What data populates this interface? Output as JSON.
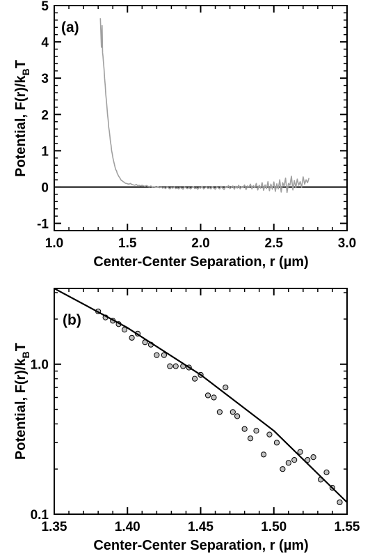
{
  "chart_data": [
    {
      "id": "a",
      "type": "line",
      "panel_label": "(a)",
      "xlabel": "Center-Center Separation, r (µm)",
      "ylabel": "Potential, F(r)/k",
      "ylabel_sub": "B",
      "ylabel_tail": "T",
      "xlim": [
        1.0,
        3.0
      ],
      "ylim": [
        -1.2,
        5.0
      ],
      "xticks": [
        1.0,
        1.5,
        2.0,
        2.5,
        3.0
      ],
      "xtick_labels": [
        "1.0",
        "1.5",
        "2.0",
        "2.5",
        "3.0"
      ],
      "yticks": [
        -1,
        0,
        1,
        2,
        3,
        4,
        5
      ],
      "ytick_labels": [
        "-1",
        "0",
        "1",
        "2",
        "3",
        "4",
        "5"
      ],
      "reference_line_y": 0,
      "series": [
        {
          "color": "#a0a0a0",
          "x": [
            1.315,
            1.322,
            1.327,
            1.33,
            1.333,
            1.336,
            1.34,
            1.344,
            1.348,
            1.352,
            1.356,
            1.36,
            1.364,
            1.368,
            1.372,
            1.376,
            1.38,
            1.384,
            1.388,
            1.392,
            1.396,
            1.4,
            1.405,
            1.41,
            1.415,
            1.42,
            1.425,
            1.43,
            1.435,
            1.44,
            1.445,
            1.45,
            1.455,
            1.46,
            1.465,
            1.47,
            1.475,
            1.48,
            1.485,
            1.49,
            1.495,
            1.5,
            1.51,
            1.52,
            1.53,
            1.54,
            1.55,
            1.56,
            1.57,
            1.58,
            1.59,
            1.6,
            1.61,
            1.62,
            1.63,
            1.64,
            1.65,
            1.66,
            1.67,
            1.68,
            1.69,
            1.7,
            1.71,
            1.72,
            1.73,
            1.74,
            1.75,
            1.76,
            1.77,
            1.78,
            1.79,
            1.8,
            1.81,
            1.82,
            1.83,
            1.84,
            1.85,
            1.86,
            1.87,
            1.88,
            1.89,
            1.9,
            1.91,
            1.92,
            1.93,
            1.94,
            1.95,
            1.96,
            1.97,
            1.98,
            1.99,
            2.0,
            2.01,
            2.02,
            2.03,
            2.04,
            2.05,
            2.06,
            2.07,
            2.08,
            2.09,
            2.1,
            2.11,
            2.12,
            2.13,
            2.14,
            2.15,
            2.16,
            2.17,
            2.18,
            2.19,
            2.2,
            2.21,
            2.22,
            2.23,
            2.24,
            2.25,
            2.26,
            2.27,
            2.28,
            2.29,
            2.3,
            2.31,
            2.32,
            2.33,
            2.34,
            2.35,
            2.36,
            2.37,
            2.38,
            2.39,
            2.4,
            2.41,
            2.42,
            2.43,
            2.44,
            2.45,
            2.46,
            2.47,
            2.48,
            2.49,
            2.5,
            2.51,
            2.52,
            2.53,
            2.54,
            2.55,
            2.56,
            2.57,
            2.58,
            2.59,
            2.6,
            2.61,
            2.62,
            2.63,
            2.64,
            2.65,
            2.66,
            2.67,
            2.68,
            2.69,
            2.7,
            2.71,
            2.72,
            2.73,
            2.74
          ],
          "y": [
            4.65,
            3.85,
            4.45,
            3.7,
            3.6,
            3.45,
            3.25,
            3.0,
            2.8,
            2.55,
            2.4,
            2.2,
            2.0,
            1.85,
            1.65,
            1.55,
            1.4,
            1.25,
            1.15,
            1.0,
            0.92,
            0.82,
            0.72,
            0.64,
            0.55,
            0.48,
            0.45,
            0.38,
            0.34,
            0.3,
            0.27,
            0.24,
            0.2,
            0.18,
            0.17,
            0.15,
            0.14,
            0.12,
            0.11,
            0.1,
            0.1,
            0.09,
            0.08,
            0.1,
            0.07,
            0.06,
            0.05,
            0.07,
            0.04,
            0.05,
            0.03,
            0.05,
            0.03,
            0.02,
            0.04,
            0.02,
            0.01,
            0.03,
            0.0,
            0.01,
            0.0,
            -0.01,
            0.01,
            -0.02,
            0.0,
            -0.03,
            -0.01,
            -0.04,
            0.0,
            -0.02,
            -0.05,
            -0.01,
            -0.03,
            0.0,
            -0.04,
            -0.02,
            -0.05,
            -0.01,
            -0.03,
            -0.06,
            0.0,
            -0.02,
            -0.04,
            -0.01,
            -0.05,
            -0.02,
            0.01,
            -0.04,
            -0.02,
            -0.06,
            -0.01,
            -0.03,
            0.02,
            -0.05,
            -0.02,
            0.0,
            -0.04,
            -0.01,
            -0.05,
            0.01,
            -0.03,
            -0.06,
            0.0,
            -0.02,
            -0.05,
            0.02,
            -0.03,
            -0.07,
            0.01,
            -0.02,
            0.04,
            -0.04,
            -0.01,
            0.03,
            -0.06,
            0.02,
            -0.03,
            0.05,
            -0.05,
            0.01,
            -0.02,
            0.06,
            -0.07,
            0.03,
            0.0,
            0.08,
            -0.05,
            0.04,
            -0.02,
            0.1,
            -0.08,
            0.05,
            -0.03,
            0.12,
            -0.09,
            0.06,
            -0.04,
            0.15,
            -0.1,
            0.08,
            -0.06,
            0.14,
            -0.12,
            0.09,
            -0.05,
            0.2,
            -0.14,
            0.12,
            0.02,
            0.25,
            -0.15,
            0.1,
            0.05,
            0.3,
            -0.08,
            0.18,
            -0.02,
            0.22,
            0.05,
            0.15,
            0.0,
            0.28,
            0.08,
            0.2,
            0.12,
            0.25
          ]
        }
      ]
    },
    {
      "id": "b",
      "type": "scatter",
      "panel_label": "(b)",
      "xlabel": "Center-Center Separation, r (µm)",
      "ylabel": "Potential, F(r)/k",
      "ylabel_sub": "B",
      "ylabel_tail": "T",
      "xlim": [
        1.35,
        1.55
      ],
      "ylim": [
        0.1,
        3.2
      ],
      "yscale": "log",
      "xticks": [
        1.35,
        1.4,
        1.45,
        1.5,
        1.55
      ],
      "xtick_labels": [
        "1.35",
        "1.40",
        "1.45",
        "1.50",
        "1.55"
      ],
      "yticks": [
        0.1,
        1.0
      ],
      "ytick_labels": [
        "0.1",
        "1.0"
      ],
      "series": [
        {
          "marker": "circle",
          "fill": "#c0c0c0",
          "x": [
            1.38,
            1.385,
            1.39,
            1.394,
            1.398,
            1.403,
            1.407,
            1.412,
            1.416,
            1.42,
            1.425,
            1.429,
            1.433,
            1.438,
            1.442,
            1.446,
            1.45,
            1.455,
            1.459,
            1.463,
            1.467,
            1.472,
            1.475,
            1.48,
            1.484,
            1.488,
            1.493,
            1.497,
            1.502,
            1.506,
            1.51,
            1.514,
            1.518,
            1.523,
            1.527,
            1.532,
            1.536,
            1.54,
            1.545
          ],
          "y": [
            2.25,
            2.05,
            1.95,
            1.85,
            1.7,
            1.5,
            1.6,
            1.4,
            1.35,
            1.15,
            1.15,
            0.97,
            0.97,
            0.97,
            0.95,
            0.8,
            0.85,
            0.62,
            0.6,
            0.48,
            0.7,
            0.48,
            0.45,
            0.37,
            0.32,
            0.36,
            0.25,
            0.34,
            0.3,
            0.2,
            0.22,
            0.23,
            0.26,
            0.23,
            0.24,
            0.17,
            0.19,
            0.15,
            0.12
          ]
        },
        {
          "type": "line",
          "color": "#000000",
          "x": [
            1.35,
            1.4,
            1.45,
            1.5,
            1.55
          ],
          "y": [
            3.2,
            1.75,
            0.85,
            0.36,
            0.12
          ]
        }
      ]
    }
  ]
}
